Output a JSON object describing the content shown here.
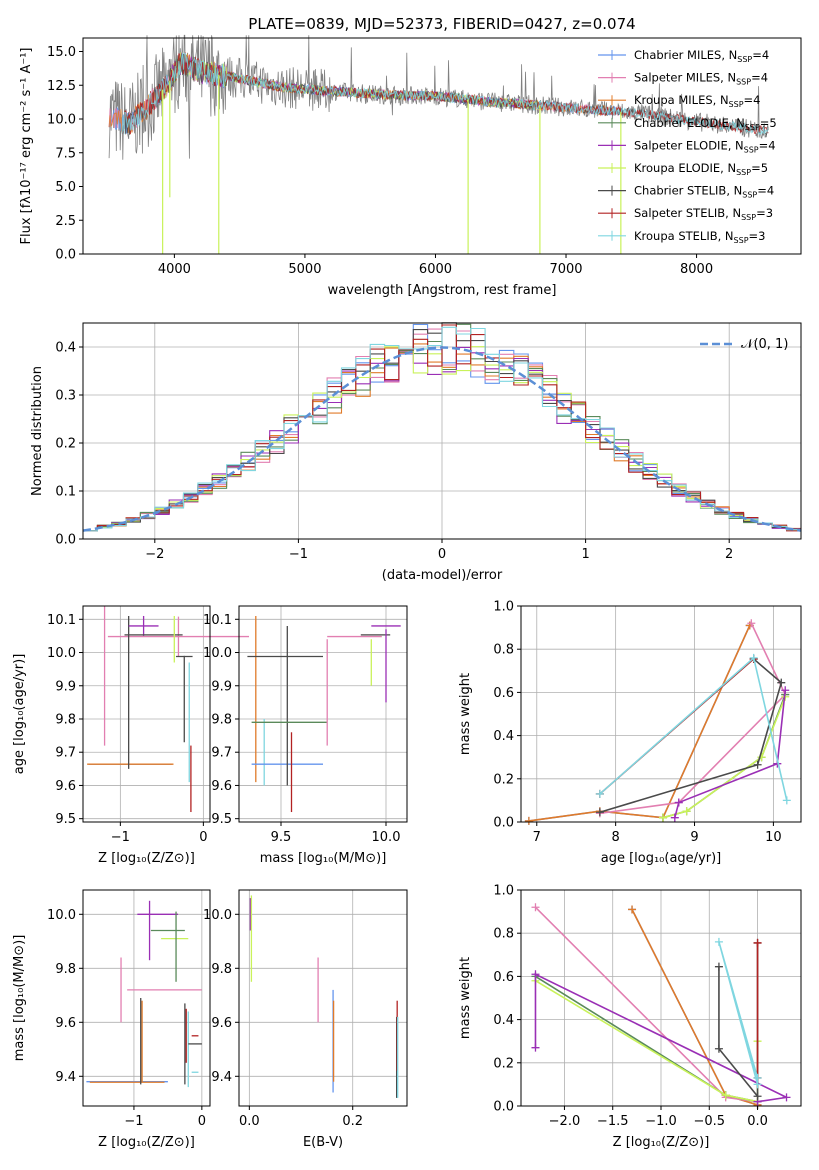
{
  "colors": {
    "chabrier_miles": "#6495ed",
    "salpeter_miles": "#e27fb1",
    "kroupa_miles": "#e07b2a",
    "chabrier_elodie": "#5a8a5a",
    "salpeter_elodie": "#9a2fb5",
    "kroupa_elodie": "#c9f25a",
    "chabrier_stelib": "#4a4a4a",
    "salpeter_stelib": "#b22222",
    "kroupa_stelib": "#7fd6e0",
    "data": "#808080",
    "normal": "#5b8fd6",
    "grid": "#b0b0b0"
  },
  "chart_data": [
    {
      "id": "spectrum",
      "type": "line",
      "title": "PLATE=0839, MJD=52373, FIBERID=0427, z=0.074",
      "xlabel": "wavelength [Angstrom, rest frame]",
      "ylabel": "Flux [fλ10⁻¹⁷ erg cm⁻² s⁻¹ A⁻¹]",
      "xlim": [
        3300,
        8800
      ],
      "ylim": [
        0,
        16
      ],
      "xticks": [
        4000,
        5000,
        6000,
        7000,
        8000
      ],
      "yticks": [
        "0.0",
        "2.5",
        "5.0",
        "7.5",
        "10.0",
        "12.5",
        "15.0"
      ],
      "grid": false,
      "legend_position": "top-right",
      "legend": [
        {
          "label": "Chabrier MILES, N",
          "sub": "SSP",
          "tail": "=4",
          "color_key": "chabrier_miles"
        },
        {
          "label": "Salpeter MILES, N",
          "sub": "SSP",
          "tail": "=4",
          "color_key": "salpeter_miles"
        },
        {
          "label": "Kroupa MILES, N",
          "sub": "SSP",
          "tail": "=4",
          "color_key": "kroupa_miles"
        },
        {
          "label": "Chabrier ELODIE, N",
          "sub": "SSP",
          "tail": "=5",
          "color_key": "chabrier_elodie"
        },
        {
          "label": "Salpeter ELODIE, N",
          "sub": "SSP",
          "tail": "=4",
          "color_key": "salpeter_elodie"
        },
        {
          "label": "Kroupa ELODIE, N",
          "sub": "SSP",
          "tail": "=5",
          "color_key": "kroupa_elodie"
        },
        {
          "label": "Chabrier STELIB, N",
          "sub": "SSP",
          "tail": "=4",
          "color_key": "chabrier_stelib"
        },
        {
          "label": "Salpeter STELIB, N",
          "sub": "SSP",
          "tail": "=3",
          "color_key": "salpeter_stelib"
        },
        {
          "label": "Kroupa STELIB, N",
          "sub": "SSP",
          "tail": "=3",
          "color_key": "kroupa_stelib"
        }
      ],
      "model_trend": {
        "x": [
          3500,
          3650,
          3800,
          3950,
          4050,
          4200,
          4400,
          4600,
          4800,
          5000,
          5300,
          5600,
          6000,
          6400,
          6800,
          7200,
          7600,
          8000,
          8400,
          8550
        ],
        "y": [
          10.3,
          9.6,
          11.0,
          12.6,
          14.2,
          13.5,
          13.2,
          12.8,
          12.4,
          12.2,
          12.0,
          11.8,
          11.7,
          11.3,
          11.0,
          10.7,
          10.4,
          9.8,
          9.3,
          9.1
        ]
      },
      "spikes": [
        {
          "x": 3910,
          "y": 0.0
        },
        {
          "x": 3965,
          "y": 4.2
        },
        {
          "x": 4340,
          "y": 0.0
        },
        {
          "x": 6250,
          "y": 0.0
        },
        {
          "x": 6800,
          "y": 0.0
        },
        {
          "x": 7420,
          "y": 0.0
        }
      ]
    },
    {
      "id": "residuals",
      "type": "histogram",
      "xlabel": "(data-model)/error",
      "ylabel": "Normed distribution",
      "xlim": [
        -2.5,
        2.5
      ],
      "ylim": [
        0,
        0.45
      ],
      "xticks": [
        "−2",
        "−1",
        "0",
        "1",
        "2"
      ],
      "xtick_values": [
        -2,
        -1,
        0,
        1,
        2
      ],
      "yticks": [
        "0.0",
        "0.1",
        "0.2",
        "0.3",
        "0.4"
      ],
      "grid": true,
      "legend_position": "top-right",
      "normal_label": "𝒩(0, 1)",
      "bin_start": -2.5,
      "bin_width": 0.1
    },
    {
      "id": "age-vs-z",
      "type": "errorbar",
      "xlabel": "Z [log₁₀(Z/Z⊙)]",
      "ylabel": "age  [log₁₀(age/yr)]",
      "xlim": [
        -1.45,
        0.08
      ],
      "ylim": [
        9.49,
        10.14
      ],
      "xticks": [
        "−1",
        "0"
      ],
      "xtick_values": [
        -1,
        0
      ],
      "yticks": [
        "9.5",
        "9.6",
        "9.7",
        "9.8",
        "9.9",
        "10.0",
        "10.1"
      ],
      "ytick_values": [
        9.5,
        9.6,
        9.7,
        9.8,
        9.9,
        10.0,
        10.1
      ],
      "grid": true,
      "points": [
        {
          "c": "chabrier_miles",
          "x": -0.88,
          "xe": 0.5,
          "y": 9.664,
          "ye": 0.0
        },
        {
          "c": "kroupa_miles",
          "x": -0.88,
          "xe": 0.52,
          "y": 9.664,
          "ye": 0.0
        },
        {
          "c": "salpeter_miles",
          "x": -0.3,
          "xe": 0.85,
          "y": 10.048,
          "ye": 0.06
        },
        {
          "c": "salpeter_miles",
          "x": -1.19,
          "xe": 0.0,
          "y": 9.93,
          "ye": 0.21
        },
        {
          "c": "chabrier_stelib",
          "x": -0.9,
          "xe": 0.0,
          "y": 9.88,
          "ye": 0.23
        },
        {
          "c": "salpeter_elodie",
          "x": -0.72,
          "xe": 0.18,
          "y": 10.08,
          "ye": 0.03
        },
        {
          "c": "chabrier_stelib",
          "x": -0.6,
          "xe": 0.35,
          "y": 10.053,
          "ye": 0.0
        },
        {
          "c": "kroupa_elodie",
          "x": -0.35,
          "xe": 0.0,
          "y": 10.04,
          "ye": 0.07
        },
        {
          "c": "chabrier_stelib",
          "x": -0.23,
          "xe": 0.1,
          "y": 9.988,
          "ye": 0.0
        },
        {
          "c": "chabrier_stelib",
          "x": -0.23,
          "xe": 0.0,
          "y": 9.86,
          "ye": 0.13
        },
        {
          "c": "kroupa_stelib",
          "x": -0.17,
          "xe": 0.0,
          "y": 9.79,
          "ye": 0.18
        },
        {
          "c": "salpeter_stelib",
          "x": -0.15,
          "xe": 0.0,
          "y": 9.62,
          "ye": 0.1
        }
      ]
    },
    {
      "id": "age-vs-mass",
      "type": "errorbar",
      "xlabel": "mass [log₁₀(M/M⊙)]",
      "ylabel": "",
      "xlim": [
        9.3,
        10.1
      ],
      "ylim": [
        9.49,
        10.14
      ],
      "xticks": [
        "9.5",
        "10.0"
      ],
      "xtick_values": [
        9.5,
        10.0
      ],
      "yticks": [
        "9.5",
        "9.6",
        "9.7",
        "9.8",
        "9.9",
        "10.0",
        "10.1"
      ],
      "ytick_values": [
        9.5,
        9.6,
        9.7,
        9.8,
        9.9,
        10.0,
        10.1
      ],
      "grid": true,
      "points": [
        {
          "c": "kroupa_miles",
          "x": 9.38,
          "xe": 0.0,
          "y": 9.86,
          "ye": 0.25
        },
        {
          "c": "kroupa_stelib",
          "x": 9.42,
          "xe": 0.0,
          "y": 9.7,
          "ye": 0.1
        },
        {
          "c": "chabrier_miles",
          "x": 9.53,
          "xe": 0.17,
          "y": 9.664,
          "ye": 0.0
        },
        {
          "c": "chabrier_stelib",
          "x": 9.52,
          "xe": 0.18,
          "y": 9.988,
          "ye": 0.0
        },
        {
          "c": "chabrier_stelib",
          "x": 9.53,
          "xe": 0.0,
          "y": 9.84,
          "ye": 0.24
        },
        {
          "c": "salpeter_stelib",
          "x": 9.55,
          "xe": 0.0,
          "y": 9.64,
          "ye": 0.12
        },
        {
          "c": "chabrier_elodie",
          "x": 9.54,
          "xe": 0.18,
          "y": 9.79,
          "ye": 0.0
        },
        {
          "c": "salpeter_miles",
          "x": 9.72,
          "xe": 0.0,
          "y": 9.88,
          "ye": 0.16
        },
        {
          "c": "salpeter_miles",
          "x": 9.85,
          "xe": 0.13,
          "y": 10.048,
          "ye": 0.0
        },
        {
          "c": "kroupa_elodie",
          "x": 9.93,
          "xe": 0.0,
          "y": 9.97,
          "ye": 0.07
        },
        {
          "c": "chabrier_stelib",
          "x": 9.95,
          "xe": 0.07,
          "y": 10.053,
          "ye": 0.0
        },
        {
          "c": "salpeter_elodie",
          "x": 10.0,
          "xe": 0.07,
          "y": 10.08,
          "ye": 0.0
        },
        {
          "c": "salpeter_elodie",
          "x": 10.0,
          "xe": 0.0,
          "y": 9.96,
          "ye": 0.11
        }
      ]
    },
    {
      "id": "massweight-vs-age",
      "type": "line",
      "xlabel": "age  [log₁₀(age/yr)]",
      "ylabel": "mass weight",
      "xlim": [
        6.8,
        10.35
      ],
      "ylim": [
        0,
        1.0
      ],
      "xticks": [
        "7",
        "8",
        "9",
        "10"
      ],
      "xtick_values": [
        7,
        8,
        9,
        10
      ],
      "yticks": [
        "0.0",
        "0.2",
        "0.4",
        "0.6",
        "0.8",
        "1.0"
      ],
      "ytick_values": [
        0,
        0.2,
        0.4,
        0.6,
        0.8,
        1.0
      ],
      "grid": true,
      "series": [
        {
          "c": "chabrier_miles",
          "x": [
            6.9,
            7.8,
            8.6,
            9.7
          ],
          "y": [
            0.005,
            0.05,
            0.02,
            0.91
          ]
        },
        {
          "c": "kroupa_miles",
          "x": [
            6.9,
            7.8,
            8.6,
            9.7
          ],
          "y": [
            0.005,
            0.05,
            0.02,
            0.91
          ]
        },
        {
          "c": "salpeter_miles",
          "x": [
            7.8,
            8.8,
            10.15,
            9.72
          ],
          "y": [
            0.04,
            0.09,
            0.59,
            0.92
          ]
        },
        {
          "c": "chabrier_elodie",
          "x": [
            8.6,
            8.9,
            9.85,
            10.15
          ],
          "y": [
            0.02,
            0.05,
            0.3,
            0.59
          ]
        },
        {
          "c": "kroupa_elodie",
          "x": [
            8.6,
            8.9,
            9.85,
            10.15
          ],
          "y": [
            0.02,
            0.05,
            0.3,
            0.58
          ]
        },
        {
          "c": "salpeter_elodie",
          "x": [
            8.75,
            8.8,
            10.05,
            10.15
          ],
          "y": [
            0.02,
            0.09,
            0.27,
            0.61
          ]
        },
        {
          "c": "chabrier_stelib",
          "x": [
            7.8,
            9.8,
            10.1,
            9.75
          ],
          "y": [
            0.045,
            0.265,
            0.645,
            0.755
          ]
        },
        {
          "c": "salpeter_stelib",
          "x": [
            7.8,
            9.75
          ],
          "y": [
            0.13,
            0.755
          ]
        },
        {
          "c": "kroupa_stelib",
          "x": [
            7.8,
            9.75,
            10.17
          ],
          "y": [
            0.13,
            0.76,
            0.1
          ]
        }
      ]
    },
    {
      "id": "mass-vs-z",
      "type": "errorbar",
      "xlabel": "Z [log₁₀(Z/Z⊙)]",
      "ylabel": "mass [log₁₀(M/M⊙)]",
      "xlim": [
        -1.75,
        0.12
      ],
      "ylim": [
        9.29,
        10.09
      ],
      "xticks": [
        "−1",
        "0"
      ],
      "xtick_values": [
        -1,
        0
      ],
      "yticks": [
        "9.4",
        "9.6",
        "9.8",
        "10.0"
      ],
      "ytick_values": [
        9.4,
        9.6,
        9.8,
        10.0
      ],
      "grid": true,
      "points": [
        {
          "c": "chabrier_miles",
          "x": -1.1,
          "xe": 0.6,
          "y": 9.38,
          "ye": 0.0
        },
        {
          "c": "kroupa_miles",
          "x": -1.1,
          "xe": 0.55,
          "y": 9.378,
          "ye": 0.0
        },
        {
          "c": "kroupa_miles",
          "x": -0.88,
          "xe": 0.0,
          "y": 9.53,
          "ye": 0.15
        },
        {
          "c": "chabrier_stelib",
          "x": -0.9,
          "xe": 0.0,
          "y": 9.53,
          "ye": 0.16
        },
        {
          "c": "salpeter_miles",
          "x": -1.19,
          "xe": 0.0,
          "y": 9.72,
          "ye": 0.12
        },
        {
          "c": "salpeter_miles",
          "x": -0.55,
          "xe": 0.55,
          "y": 9.72,
          "ye": 0.0
        },
        {
          "c": "salpeter_elodie",
          "x": -0.65,
          "xe": 0.3,
          "y": 10.0,
          "ye": 0.0
        },
        {
          "c": "salpeter_elodie",
          "x": -0.77,
          "xe": 0.0,
          "y": 9.94,
          "ye": 0.11
        },
        {
          "c": "chabrier_elodie",
          "x": -0.5,
          "xe": 0.25,
          "y": 9.94,
          "ye": 0.0
        },
        {
          "c": "kroupa_elodie",
          "x": -0.4,
          "xe": 0.2,
          "y": 9.91,
          "ye": 0.0
        },
        {
          "c": "chabrier_elodie",
          "x": -0.38,
          "xe": 0.0,
          "y": 9.88,
          "ye": 0.13
        },
        {
          "c": "chabrier_stelib",
          "x": -0.25,
          "xe": 0.0,
          "y": 9.52,
          "ye": 0.15
        },
        {
          "c": "kroupa_stelib",
          "x": -0.2,
          "xe": 0.0,
          "y": 9.5,
          "ye": 0.14
        },
        {
          "c": "salpeter_stelib",
          "x": -0.23,
          "xe": 0.0,
          "y": 9.55,
          "ye": 0.1
        },
        {
          "c": "chabrier_stelib",
          "x": -0.1,
          "xe": 0.1,
          "y": 9.52,
          "ye": 0.0
        },
        {
          "c": "salpeter_stelib",
          "x": -0.1,
          "xe": 0.05,
          "y": 9.55,
          "ye": 0.0
        },
        {
          "c": "kroupa_stelib",
          "x": -0.1,
          "xe": 0.05,
          "y": 9.415,
          "ye": 0.0
        }
      ]
    },
    {
      "id": "mass-vs-ebv",
      "type": "errorbar",
      "xlabel": "E(B-V)",
      "ylabel": "",
      "xlim": [
        -0.02,
        0.305
      ],
      "ylim": [
        9.29,
        10.09
      ],
      "xticks": [
        "0.0",
        "0.2"
      ],
      "xtick_values": [
        0.0,
        0.2
      ],
      "yticks": [
        "9.4",
        "9.6",
        "9.8",
        "10.0"
      ],
      "ytick_values": [
        9.4,
        9.6,
        9.8,
        10.0
      ],
      "grid": true,
      "points": [
        {
          "c": "salpeter_elodie",
          "x": 0.002,
          "xe": 0.0,
          "y": 10.0,
          "ye": 0.06
        },
        {
          "c": "kroupa_elodie",
          "x": 0.004,
          "xe": 0.0,
          "y": 9.91,
          "ye": 0.16
        },
        {
          "c": "salpeter_miles",
          "x": 0.133,
          "xe": 0.0,
          "y": 9.72,
          "ye": 0.12
        },
        {
          "c": "chabrier_miles",
          "x": 0.162,
          "xe": 0.0,
          "y": 9.53,
          "ye": 0.19
        },
        {
          "c": "kroupa_miles",
          "x": 0.163,
          "xe": 0.0,
          "y": 9.53,
          "ye": 0.15
        },
        {
          "c": "chabrier_stelib",
          "x": 0.285,
          "xe": 0.0,
          "y": 9.47,
          "ye": 0.15
        },
        {
          "c": "salpeter_stelib",
          "x": 0.286,
          "xe": 0.0,
          "y": 9.55,
          "ye": 0.13
        },
        {
          "c": "kroupa_stelib",
          "x": 0.287,
          "xe": 0.0,
          "y": 9.47,
          "ye": 0.15
        }
      ]
    },
    {
      "id": "massweight-vs-z",
      "type": "line",
      "xlabel": "Z [log₁₀(Z/Z⊙)]",
      "ylabel": "mass weight",
      "xlim": [
        -2.45,
        0.45
      ],
      "ylim": [
        0,
        1.0
      ],
      "xticks": [
        "−2.0",
        "−1.5",
        "−1.0",
        "−0.5",
        "0.0"
      ],
      "xtick_values": [
        -2.0,
        -1.5,
        -1.0,
        -0.5,
        0.0
      ],
      "yticks": [
        "0.0",
        "0.2",
        "0.4",
        "0.6",
        "0.8",
        "1.0"
      ],
      "ytick_values": [
        0,
        0.2,
        0.4,
        0.6,
        0.8,
        1.0
      ],
      "grid": true,
      "series": [
        {
          "c": "chabrier_miles",
          "x": [
            -1.3,
            -0.33,
            0.0
          ],
          "y": [
            0.91,
            0.05,
            0.005
          ]
        },
        {
          "c": "kroupa_miles",
          "x": [
            -1.3,
            -0.33,
            0.0
          ],
          "y": [
            0.91,
            0.05,
            0.005
          ]
        },
        {
          "c": "salpeter_miles",
          "x": [
            -2.3,
            -0.33,
            0.0
          ],
          "y": [
            0.92,
            0.04,
            0.02
          ]
        },
        {
          "c": "chabrier_elodie",
          "x": [
            -2.3,
            -0.33,
            0.0
          ],
          "y": [
            0.6,
            0.05,
            0.02
          ]
        },
        {
          "c": "kroupa_elodie",
          "x": [
            -2.3,
            -0.33,
            0.0,
            0.0
          ],
          "y": [
            0.58,
            0.05,
            0.02,
            0.3
          ]
        },
        {
          "c": "salpeter_elodie",
          "x": [
            -2.3,
            -2.3,
            0.3,
            0.0
          ],
          "y": [
            0.27,
            0.61,
            0.04,
            0.02
          ]
        },
        {
          "c": "chabrier_stelib",
          "x": [
            -0.4,
            -0.4,
            0.0,
            0.0
          ],
          "y": [
            0.645,
            0.265,
            0.045,
            0.755
          ]
        },
        {
          "c": "salpeter_stelib",
          "x": [
            0.0,
            0.0
          ],
          "y": [
            0.13,
            0.755
          ]
        },
        {
          "c": "kroupa_stelib",
          "x": [
            0.0,
            -0.4,
            0.0
          ],
          "y": [
            0.13,
            0.76,
            0.1
          ]
        }
      ]
    }
  ]
}
